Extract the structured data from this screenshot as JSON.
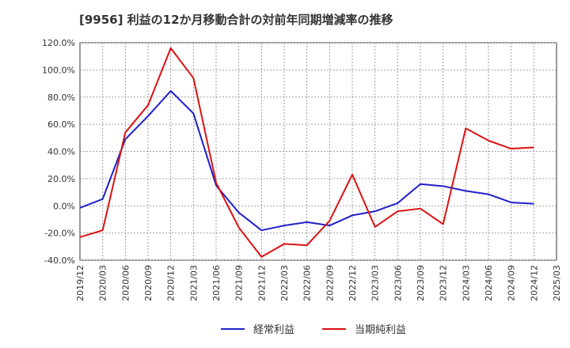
{
  "chart_data": {
    "type": "line",
    "title": "[9956]  利益の12か月移動合計の対前年同期増減率の推移",
    "xlabel": "",
    "ylabel": "",
    "ylim": [
      -40,
      120
    ],
    "yticks": [
      -40,
      -20,
      0,
      20,
      40,
      60,
      80,
      100,
      120
    ],
    "ytick_labels": [
      "-40.0%",
      "-20.0%",
      "0.0%",
      "20.0%",
      "40.0%",
      "60.0%",
      "80.0%",
      "100.0%",
      "120.0%"
    ],
    "categories": [
      "2019/12",
      "2020/03",
      "2020/06",
      "2020/09",
      "2020/12",
      "2021/03",
      "2021/06",
      "2021/09",
      "2021/12",
      "2022/03",
      "2022/06",
      "2022/09",
      "2022/12",
      "2023/03",
      "2023/06",
      "2023/09",
      "2023/12",
      "2024/03",
      "2024/06",
      "2024/09",
      "2024/12",
      "2025/03"
    ],
    "grid": true,
    "legend_position": "bottom",
    "series": [
      {
        "name": "経常利益",
        "color": "#1f1fcc",
        "values": [
          -1.5,
          5,
          49,
          66,
          84.5,
          68,
          15,
          -5,
          -18,
          -14.5,
          -12,
          -14.5,
          -7,
          -4,
          2,
          16,
          14.5,
          11,
          8.5,
          2.5,
          1.5,
          null
        ]
      },
      {
        "name": "当期純利益",
        "color": "#dd1111",
        "values": [
          -23,
          -18,
          54,
          74,
          116,
          94,
          17,
          -16,
          -37.5,
          -28,
          -29,
          -11,
          23,
          -15.5,
          -4,
          -2,
          -13.5,
          57,
          48,
          42,
          43,
          null
        ]
      }
    ]
  }
}
